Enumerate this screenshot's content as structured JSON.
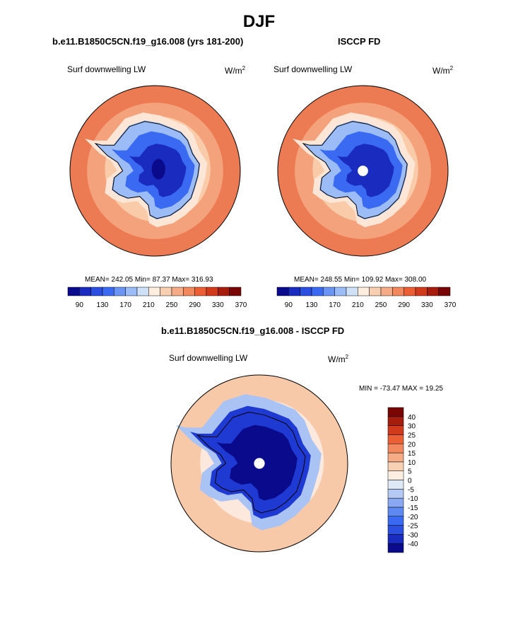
{
  "page": {
    "title": "DJF"
  },
  "panels": [
    {
      "title": "b.e11.B1850C5CN.f19_g16.008 (yrs 181-200)",
      "variable": "Surf downwelling LW",
      "units_base": "W/m",
      "units_exp": "2",
      "stats": "MEAN= 242.05  Min=  87.37  Max= 316.93",
      "pole_hole": false
    },
    {
      "title": "ISCCP FD",
      "variable": "Surf downwelling LW",
      "units_base": "W/m",
      "units_exp": "2",
      "stats": "MEAN= 248.55  Min= 109.92  Max= 308.00",
      "pole_hole": true
    },
    {
      "title": "b.e11.B1850C5CN.f19_g16.008 - ISCCP FD",
      "variable": "Surf downwelling LW",
      "units_base": "W/m",
      "units_exp": "2",
      "stats": "MIN = -73.47 MAX =  19.25",
      "pole_hole": true
    }
  ],
  "colorbar_abs": {
    "colors": [
      "#0a0a8c",
      "#1a2cc0",
      "#2b4fe0",
      "#3a6af2",
      "#6a95f5",
      "#9bbcf7",
      "#cfe1f7",
      "#fdeee0",
      "#f8cfb0",
      "#f5ac86",
      "#f1885e",
      "#ec5f34",
      "#d23a1c",
      "#a61d0e",
      "#790505"
    ],
    "labels": [
      "90",
      "130",
      "170",
      "210",
      "250",
      "290",
      "330",
      "370"
    ]
  },
  "colorbar_diff": {
    "colors": [
      "#0a0a8c",
      "#1a2cc0",
      "#2b4fe0",
      "#3a6af2",
      "#5e89f3",
      "#8aa8f2",
      "#b5c9f2",
      "#dfe8f6",
      "#fcefe2",
      "#f8d0b4",
      "#f5ac86",
      "#f1885e",
      "#ec5f34",
      "#d23a1c",
      "#a61d0e",
      "#790505"
    ],
    "labels": [
      "40",
      "30",
      "25",
      "20",
      "15",
      "10",
      "5",
      "0",
      "-5",
      "-10",
      "-15",
      "-20",
      "-25",
      "-30",
      "-40"
    ]
  },
  "map_colors": {
    "ocean_far": "#ec7a52",
    "ocean_mid": "#f4a27c",
    "ocean_near": "#f9cba9",
    "ice_edge": "#fde6d6",
    "land_outer": "#9bbcf7",
    "land_mid": "#3a6af2",
    "land_inner": "#1a2cc0",
    "land_core": "#0a0a8c",
    "diff_ocean": "#f8c9a8",
    "diff_ring": "#fce8dc",
    "diff_edge": "#a9c3f4",
    "diff_land": "#1e3ad3",
    "diff_core": "#0a0a8c"
  }
}
